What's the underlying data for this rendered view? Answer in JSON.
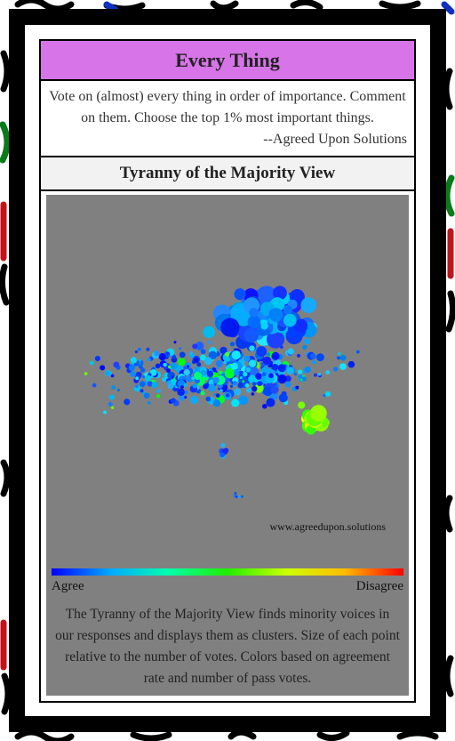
{
  "header": {
    "title": "Every Thing"
  },
  "description": {
    "text": "Vote on (almost) every thing in order of importance. Comment on them. Choose the top 1% most important things.",
    "attribution": "--Agreed Upon Solutions"
  },
  "section": {
    "title": "Tyranny of the Majority View"
  },
  "visualization": {
    "watermark": "www.agreedupon.solutions",
    "legend": {
      "low": "Agree",
      "high": "Disagree"
    },
    "caption": "The Tyranny of the Majority View finds minority voices in our responses and displays them as clusters. Size of each point relative to the number of votes. Colors based on agreement rate and number of pass votes."
  }
}
